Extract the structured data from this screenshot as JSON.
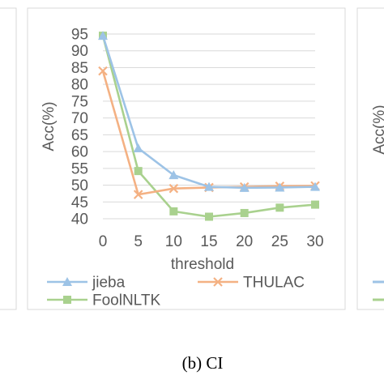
{
  "caption": "(b)   CI",
  "chart_data": {
    "type": "line",
    "title": "",
    "xlabel": "threshold",
    "ylabel": "Acc(%)",
    "x": [
      0,
      5,
      10,
      15,
      20,
      25,
      30
    ],
    "x_ticks": [
      "0",
      "5",
      "10",
      "15",
      "20",
      "25",
      "30"
    ],
    "y_ticks": [
      "40",
      "45",
      "50",
      "55",
      "60",
      "65",
      "70",
      "75",
      "80",
      "85",
      "90",
      "95"
    ],
    "ylim": [
      40,
      95
    ],
    "grid": true,
    "legend_position": "bottom",
    "series": [
      {
        "name": "jieba",
        "marker": "triangle",
        "color": "#9dc3e6",
        "values": [
          94.5,
          61,
          53,
          49.5,
          49.2,
          49.3,
          49.5
        ]
      },
      {
        "name": "THULAC",
        "marker": "x",
        "color": "#f4b183",
        "values": [
          84,
          47.2,
          49,
          49.3,
          49.5,
          49.7,
          49.8
        ]
      },
      {
        "name": "FoolNLTK",
        "marker": "square",
        "color": "#a9d18e",
        "values": [
          94.5,
          54.2,
          42.2,
          40.6,
          41.7,
          43.3,
          44.2
        ]
      }
    ]
  }
}
